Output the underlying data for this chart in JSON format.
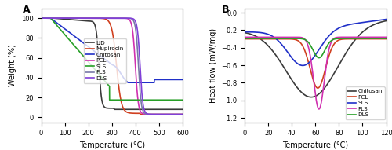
{
  "panel_A": {
    "title": "A",
    "xlabel": "Temperature (°C)",
    "ylabel": "Weight (%)",
    "xlim": [
      0,
      600
    ],
    "ylim": [
      -5,
      110
    ],
    "xticks": [
      0,
      100,
      200,
      300,
      400,
      500,
      600
    ],
    "yticks": [
      0,
      20,
      40,
      60,
      80,
      100
    ],
    "series": {
      "LID": {
        "color": "#3a3a3a",
        "lw": 1.2
      },
      "Mupirocin": {
        "color": "#d04020",
        "lw": 1.2
      },
      "Chitosan": {
        "color": "#2030c8",
        "lw": 1.2
      },
      "PCL": {
        "color": "#d030b0",
        "lw": 1.2
      },
      "SLS": {
        "color": "#28a028",
        "lw": 1.2
      },
      "FLS": {
        "color": "#7878a8",
        "lw": 1.2
      },
      "DLS": {
        "color": "#8040d8",
        "lw": 1.2
      }
    }
  },
  "panel_B": {
    "title": "B",
    "xlabel": "Temperature (°C)",
    "ylabel": "Heat flow (mW/mg)",
    "xlim": [
      0,
      120
    ],
    "ylim": [
      -1.25,
      0.05
    ],
    "xticks": [
      0,
      20,
      40,
      60,
      80,
      100,
      120
    ],
    "yticks": [
      0.0,
      -0.2,
      -0.4,
      -0.6,
      -0.8,
      -1.0,
      -1.2
    ],
    "series": {
      "Chitosan": {
        "color": "#3a3a3a",
        "lw": 1.2
      },
      "PCL": {
        "color": "#d04020",
        "lw": 1.2
      },
      "SLS": {
        "color": "#2030c8",
        "lw": 1.2
      },
      "FLS": {
        "color": "#d030b0",
        "lw": 1.2
      },
      "DLS": {
        "color": "#28a028",
        "lw": 1.2
      }
    }
  }
}
